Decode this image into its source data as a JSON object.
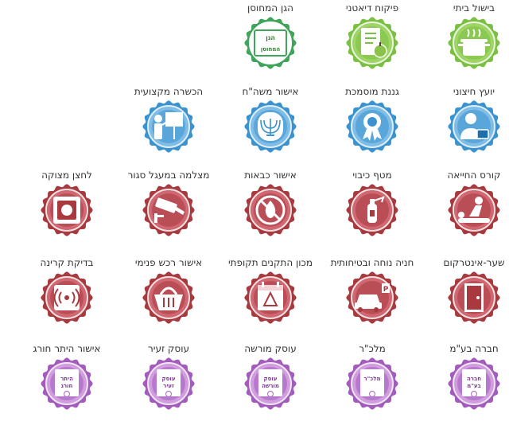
{
  "colors": {
    "green_outer": "#7cc043",
    "green_inner": "#a6d96a",
    "darkgreen_outer": "#3fa55b",
    "blue_outer": "#3a93d0",
    "blue_inner": "#8cc4ea",
    "red_outer": "#a83a3f",
    "red_inner": "#d8707a",
    "purple_outer": "#a35bbd",
    "purple_inner": "#d9a9e6",
    "label_text": "#333333"
  },
  "rows": [
    {
      "items": [
        {
          "label": "בישול ביתי",
          "icon": "cooking-pot-icon",
          "theme": "green"
        },
        {
          "label": "פיקוח דיאטני",
          "icon": "diet-notebook-apple-icon",
          "theme": "green"
        },
        {
          "label": "הגן המחוסן",
          "icon": "certificate-stamp-icon",
          "theme": "darkgreen",
          "stamp_lines": [
            "הגן",
            "המחוסן"
          ]
        },
        {
          "label": "",
          "icon": "",
          "theme": "none"
        },
        {
          "label": "",
          "icon": "",
          "theme": "none"
        }
      ]
    },
    {
      "items": [
        {
          "label": "יועץ חיצוני",
          "icon": "consultant-briefcase-icon",
          "theme": "blue"
        },
        {
          "label": "גננת מוסמכת",
          "icon": "award-rosette-icon",
          "theme": "blue"
        },
        {
          "label": "אישור משה\"ח",
          "icon": "menorah-emblem-icon",
          "theme": "blue"
        },
        {
          "label": "הכשרה מקצועית",
          "icon": "presentation-board-icon",
          "theme": "blue"
        },
        {
          "label": "",
          "icon": "",
          "theme": "none"
        }
      ]
    },
    {
      "items": [
        {
          "label": "קורס החייאה",
          "icon": "cpr-first-aid-icon",
          "theme": "red"
        },
        {
          "label": "מטף כיבוי",
          "icon": "fire-extinguisher-icon",
          "theme": "red"
        },
        {
          "label": "אישור כבאות",
          "icon": "no-fire-icon",
          "theme": "red"
        },
        {
          "label": "מצלמה במעגל סגור",
          "icon": "cctv-camera-icon",
          "theme": "red"
        },
        {
          "label": "לחצן מצוקה",
          "icon": "panic-button-icon",
          "theme": "red"
        }
      ]
    },
    {
      "items": [
        {
          "label": "שער-אינטרקום",
          "icon": "door-intercom-icon",
          "theme": "red"
        },
        {
          "label": "חניה נוחה ובטיחותית",
          "icon": "parking-car-icon",
          "theme": "red"
        },
        {
          "label": "מכון התקנים תקופתי",
          "icon": "standards-calendar-icon",
          "theme": "red"
        },
        {
          "label": "אישור רכש פנימי",
          "icon": "shopping-basket-icon",
          "theme": "red"
        },
        {
          "label": "בדיקת קרינה",
          "icon": "radiation-check-icon",
          "theme": "red"
        }
      ]
    },
    {
      "items": [
        {
          "label": "חברה בע\"מ",
          "icon": "certificate-ribbon-icon",
          "theme": "purple",
          "cert_lines": [
            "חברה",
            "בע\"מ"
          ]
        },
        {
          "label": "מלכ\"ר",
          "icon": "certificate-ribbon-icon",
          "theme": "purple",
          "cert_lines": [
            "מלכ\"ר",
            ""
          ]
        },
        {
          "label": "עוסק מורשה",
          "icon": "certificate-ribbon-icon",
          "theme": "purple",
          "cert_lines": [
            "עוסק",
            "מורשה"
          ]
        },
        {
          "label": "עוסק זעיר",
          "icon": "certificate-ribbon-icon",
          "theme": "purple",
          "cert_lines": [
            "עוסק",
            "זעיר"
          ]
        },
        {
          "label": "אישור היתר חורג",
          "icon": "certificate-ribbon-icon",
          "theme": "purple",
          "cert_lines": [
            "היתר",
            "חורג"
          ]
        }
      ]
    }
  ]
}
